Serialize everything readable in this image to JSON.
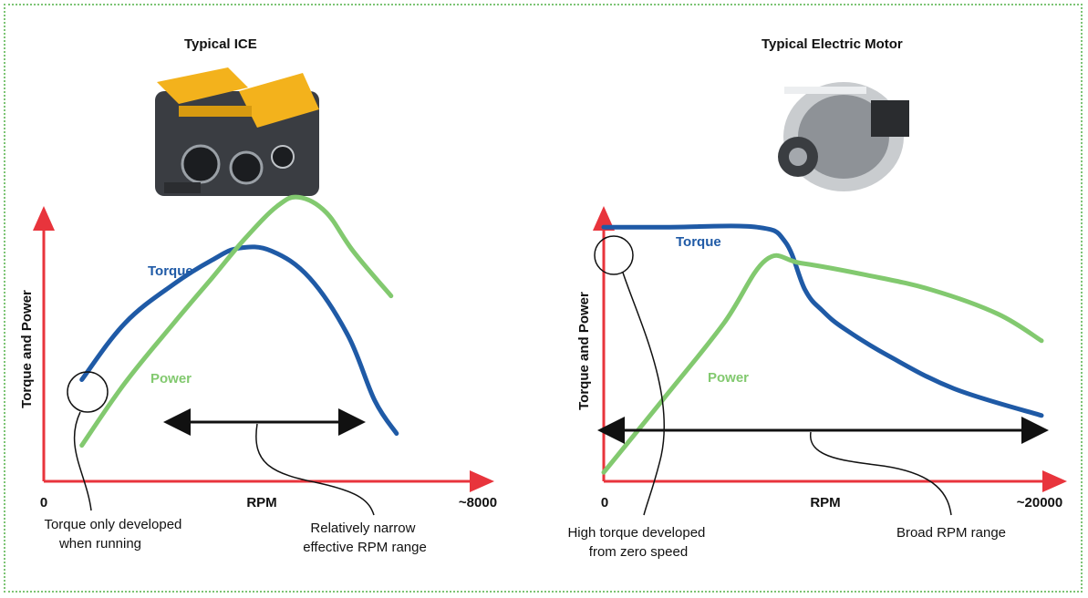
{
  "chart_data": [
    {
      "type": "line",
      "title": "Typical ICE",
      "xlabel": "RPM",
      "ylabel": "Torque and Power",
      "x_tick_labels": [
        "0",
        "~8000"
      ],
      "xlim": [
        0,
        8000
      ],
      "ylim": [
        0,
        1
      ],
      "grid": false,
      "legend": "inline labels",
      "series": [
        {
          "name": "Torque",
          "color": "#1f5aa6",
          "x": [
            700,
            1500,
            2400,
            3100,
            3600,
            4200,
            4900,
            5600,
            6100,
            6500
          ],
          "y": [
            0.34,
            0.53,
            0.66,
            0.74,
            0.78,
            0.77,
            0.68,
            0.49,
            0.27,
            0.16
          ]
        },
        {
          "name": "Power",
          "color": "#82c96f",
          "x": [
            700,
            1500,
            2400,
            3100,
            3700,
            4300,
            4700,
            5200,
            5700,
            6400
          ],
          "y": [
            0.12,
            0.33,
            0.53,
            0.68,
            0.81,
            0.92,
            0.95,
            0.9,
            0.77,
            0.62
          ]
        }
      ],
      "annotations": [
        "Torque only developed when running",
        "Relatively narrow effective RPM range"
      ]
    },
    {
      "type": "line",
      "title": "Typical Electric Motor",
      "xlabel": "RPM",
      "ylabel": "Torque and Power",
      "x_tick_labels": [
        "0",
        "~20000"
      ],
      "xlim": [
        0,
        20000
      ],
      "ylim": [
        0,
        1
      ],
      "grid": false,
      "legend": "inline labels",
      "series": [
        {
          "name": "Torque",
          "color": "#1f5aa6",
          "x": [
            0,
            3000,
            7000,
            8300,
            9200,
            10000,
            11000,
            13000,
            16000,
            20000
          ],
          "y": [
            0.85,
            0.85,
            0.85,
            0.8,
            0.64,
            0.57,
            0.51,
            0.42,
            0.31,
            0.22
          ]
        },
        {
          "name": "Power",
          "color": "#82c96f",
          "x": [
            0,
            3000,
            5500,
            7400,
            9000,
            12000,
            15000,
            18000,
            20000
          ],
          "y": [
            0.03,
            0.3,
            0.53,
            0.74,
            0.73,
            0.69,
            0.64,
            0.56,
            0.47
          ]
        }
      ],
      "annotations": [
        "High torque developed from zero speed",
        "Broad RPM range"
      ]
    }
  ],
  "images": [
    {
      "name": "ICE engine photo",
      "icon": "engine-icon"
    },
    {
      "name": "Electric motor photo",
      "icon": "electric-motor-icon"
    }
  ],
  "colors": {
    "axis": "#e8343c",
    "torque": "#1f5aa6",
    "power": "#82c96f",
    "arrow": "#111111",
    "frame": "#7cc474"
  }
}
